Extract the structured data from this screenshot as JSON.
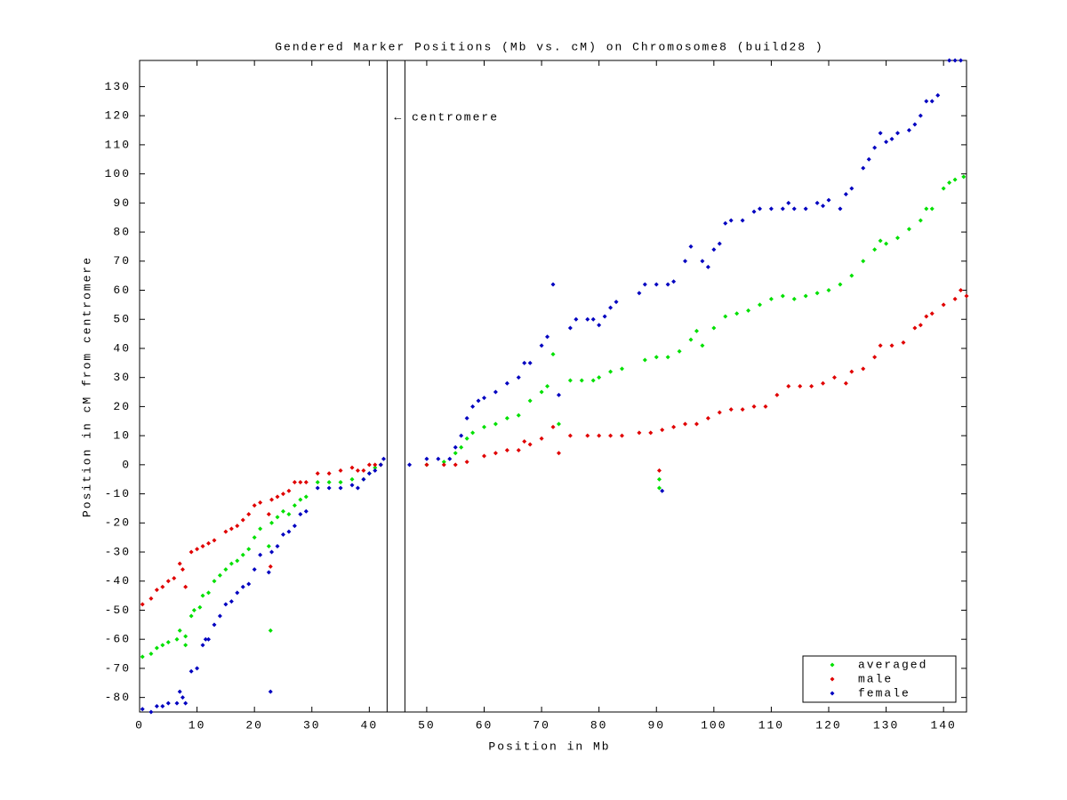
{
  "chart_data": {
    "type": "scatter",
    "title": "Gendered Marker Positions (Mb vs. cM) on Chromosome8 (build28 )",
    "x_label": "Position in Mb",
    "y_label": "Position in cM from centromere",
    "annotation": "← centromere",
    "centromere_lines": [
      43.1,
      46.2
    ],
    "xlim": [
      0,
      144
    ],
    "ylim": [
      -85,
      139
    ],
    "xticks": [
      0,
      10,
      20,
      30,
      40,
      50,
      60,
      70,
      80,
      90,
      100,
      110,
      120,
      130,
      140
    ],
    "yticks": [
      -80,
      -70,
      -60,
      -50,
      -40,
      -30,
      -20,
      -10,
      0,
      10,
      20,
      30,
      40,
      50,
      60,
      70,
      80,
      90,
      100,
      110,
      120,
      130
    ],
    "legend_position": "lower right",
    "series": [
      {
        "name": "averaged",
        "color": "#00e000",
        "x": [
          0.5,
          2,
          3,
          4,
          5,
          6.5,
          7,
          8,
          8,
          9,
          9.5,
          10.5,
          11,
          12,
          13,
          14,
          15,
          16,
          17,
          18,
          19,
          20,
          21,
          22.5,
          22.8,
          23,
          24,
          25,
          26,
          27,
          28,
          29,
          31,
          33,
          35,
          37,
          39,
          40,
          41,
          42,
          50,
          53,
          55,
          56,
          57,
          58,
          60,
          62,
          64,
          66,
          68,
          70,
          71,
          72,
          73,
          75,
          77,
          79,
          80,
          82,
          84,
          88,
          90,
          90.5,
          90.5,
          92,
          94,
          96,
          97,
          98,
          100,
          102,
          104,
          106,
          108,
          110,
          112,
          114,
          116,
          118,
          120,
          122,
          124,
          126,
          128,
          129,
          130,
          132,
          134,
          136,
          137,
          138,
          140,
          141,
          142,
          143.5
        ],
        "values": [
          -66,
          -65,
          -63,
          -62,
          -61,
          -60,
          -57,
          -59,
          -62,
          -52,
          -50,
          -49,
          -45,
          -44,
          -40,
          -38,
          -36,
          -34,
          -33,
          -31,
          -29,
          -25,
          -22,
          -28,
          -57,
          -20,
          -18,
          -16,
          -17,
          -14,
          -12,
          -11,
          -6,
          -6,
          -6,
          -5,
          -5,
          -3,
          -1,
          0,
          0,
          1,
          4,
          6,
          9,
          11,
          13,
          14,
          16,
          17,
          22,
          25,
          27,
          38,
          14,
          29,
          29,
          29,
          30,
          32,
          33,
          36,
          37,
          -5,
          -8,
          37,
          39,
          43,
          46,
          41,
          47,
          51,
          52,
          53,
          55,
          57,
          58,
          57,
          58,
          59,
          60,
          62,
          65,
          70,
          74,
          77,
          76,
          78,
          81,
          84,
          88,
          88,
          95,
          97,
          98,
          99
        ]
      },
      {
        "name": "male",
        "color": "#e00000",
        "x": [
          0.5,
          2,
          3,
          4,
          5,
          6,
          7,
          7.5,
          8,
          9,
          10,
          11,
          12,
          13,
          15,
          16,
          17,
          18,
          19,
          20,
          21,
          22.5,
          22.8,
          23,
          24,
          25,
          26,
          27,
          28,
          29,
          31,
          33,
          35,
          37,
          38,
          39,
          40,
          41,
          42,
          50,
          53,
          55,
          57,
          60,
          62,
          64,
          66,
          67,
          68,
          70,
          72,
          73,
          75,
          78,
          80,
          82,
          84,
          87,
          89,
          90.5,
          91,
          93,
          95,
          97,
          99,
          101,
          103,
          105,
          107,
          109,
          111,
          113,
          115,
          117,
          119,
          121,
          123,
          124,
          126,
          128,
          129,
          131,
          133,
          135,
          136,
          137,
          138,
          140,
          142,
          143,
          144
        ],
        "values": [
          -48,
          -46,
          -43,
          -42,
          -40,
          -39,
          -34,
          -36,
          -42,
          -30,
          -29,
          -28,
          -27,
          -26,
          -23,
          -22,
          -21,
          -19,
          -17,
          -14,
          -13,
          -17,
          -35,
          -12,
          -11,
          -10,
          -9,
          -6,
          -6,
          -6,
          -3,
          -3,
          -2,
          -1,
          -2,
          -2,
          0,
          0,
          0,
          0,
          0,
          0,
          1,
          3,
          4,
          5,
          5,
          8,
          7,
          9,
          13,
          4,
          10,
          10,
          10,
          10,
          10,
          11,
          11,
          -2,
          12,
          13,
          14,
          14,
          16,
          18,
          19,
          19,
          20,
          20,
          24,
          27,
          27,
          27,
          28,
          30,
          28,
          32,
          33,
          37,
          41,
          41,
          42,
          47,
          48,
          51,
          52,
          55,
          57,
          60,
          58
        ]
      },
      {
        "name": "female",
        "color": "#0000c0",
        "x": [
          0.5,
          2,
          3,
          4,
          5,
          6.5,
          7,
          7.5,
          8,
          9,
          10,
          11,
          11.5,
          12,
          13,
          14,
          15,
          16,
          17,
          18,
          19,
          20,
          21,
          22.5,
          22.8,
          23,
          24,
          25,
          26,
          27,
          28,
          29,
          31,
          33,
          35,
          37,
          38,
          39,
          40,
          41,
          42,
          42.5,
          47,
          50,
          52,
          54,
          55,
          56,
          57,
          58,
          59,
          60,
          62,
          64,
          66,
          67,
          68,
          70,
          71,
          72,
          73,
          75,
          76,
          78,
          79,
          80,
          81,
          82,
          83,
          87,
          88,
          90,
          91,
          92,
          93,
          95,
          96,
          98,
          99,
          100,
          101,
          102,
          103,
          105,
          107,
          108,
          110,
          112,
          113,
          114,
          116,
          118,
          119,
          120,
          122,
          123,
          124,
          126,
          127,
          128,
          129,
          130,
          131,
          132,
          134,
          135,
          136,
          137,
          138,
          139,
          141,
          142,
          143
        ],
        "values": [
          -84,
          -85,
          -83,
          -83,
          -82,
          -82,
          -78,
          -80,
          -82,
          -71,
          -70,
          -62,
          -60,
          -60,
          -55,
          -52,
          -48,
          -47,
          -44,
          -42,
          -41,
          -36,
          -31,
          -37,
          -78,
          -30,
          -28,
          -24,
          -23,
          -21,
          -17,
          -16,
          -8,
          -8,
          -8,
          -7,
          -8,
          -5,
          -3,
          -2,
          0,
          2,
          0,
          2,
          2,
          2,
          6,
          10,
          16,
          20,
          22,
          23,
          25,
          28,
          30,
          35,
          35,
          41,
          44,
          62,
          24,
          47,
          50,
          50,
          50,
          48,
          51,
          54,
          56,
          59,
          62,
          62,
          -9,
          62,
          63,
          70,
          75,
          70,
          68,
          74,
          76,
          83,
          84,
          84,
          87,
          88,
          88,
          88,
          90,
          88,
          88,
          90,
          89,
          91,
          88,
          93,
          95,
          102,
          105,
          109,
          114,
          111,
          112,
          114,
          115,
          117,
          120,
          125,
          125,
          127,
          139,
          139,
          139
        ]
      }
    ]
  }
}
